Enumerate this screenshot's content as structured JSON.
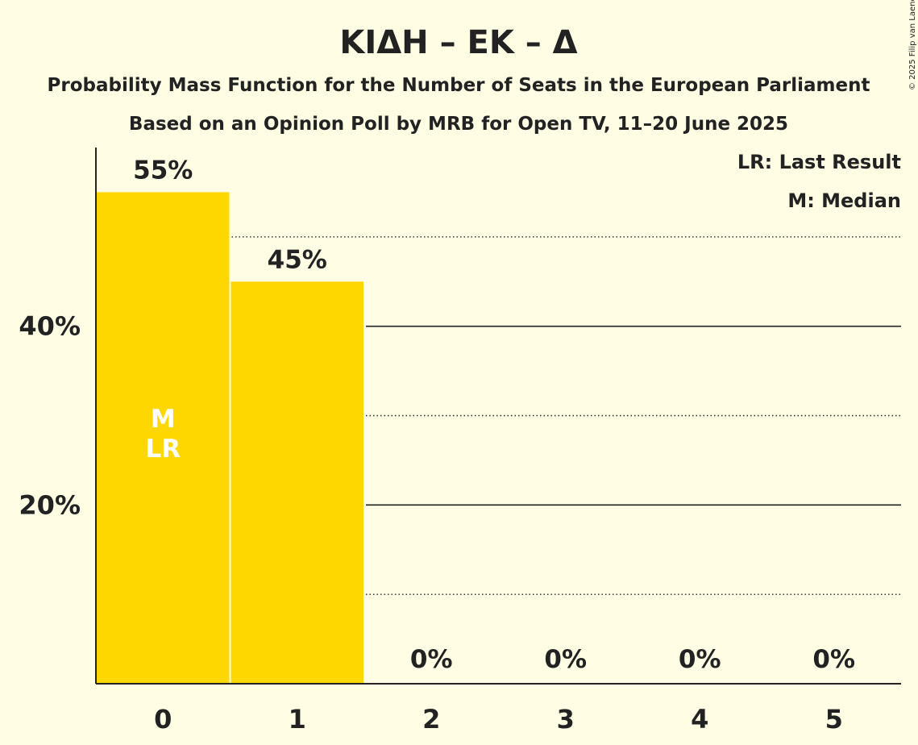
{
  "title": "ΚΙΔΗ – ΕΚ – Δ",
  "subtitle_1": "Probability Mass Function for the Number of Seats in the European Parliament",
  "subtitle_2": "Based on an Opinion Poll by MRB for Open TV, 11–20 June 2025",
  "copyright": "© 2025 Filip van Laenen",
  "legend": {
    "last_result": "LR: Last Result",
    "median": "M: Median"
  },
  "colors": {
    "background": "#FFFEE5",
    "bar": "#FFD700",
    "text": "#222222",
    "marker_text": "#FFFFFF"
  },
  "chart_data": {
    "type": "bar",
    "categories": [
      "0",
      "1",
      "2",
      "3",
      "4",
      "5"
    ],
    "values": [
      55,
      45,
      0,
      0,
      0,
      0
    ],
    "value_labels": [
      "55%",
      "45%",
      "0%",
      "0%",
      "0%",
      "0%"
    ],
    "ylim": [
      0,
      60
    ],
    "y_ticks": [
      {
        "value": 20,
        "label": "20%"
      },
      {
        "value": 40,
        "label": "40%"
      }
    ],
    "minor_gridlines": [
      10,
      30,
      50
    ],
    "median_category": "0",
    "last_result_category": "0",
    "marker_labels": [
      "M",
      "LR"
    ],
    "grid": true,
    "legend_position": "top-right"
  }
}
